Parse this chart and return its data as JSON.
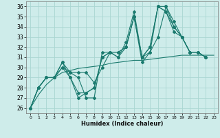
{
  "xlabel": "Humidex (Indice chaleur)",
  "xlim": [
    -0.5,
    23.5
  ],
  "ylim": [
    25.5,
    36.5
  ],
  "yticks": [
    26,
    27,
    28,
    29,
    30,
    31,
    32,
    33,
    34,
    35,
    36
  ],
  "xticks": [
    0,
    1,
    2,
    3,
    4,
    5,
    6,
    7,
    8,
    9,
    10,
    11,
    12,
    13,
    14,
    15,
    16,
    17,
    18,
    19,
    20,
    21,
    22,
    23
  ],
  "bg_color": "#ceecea",
  "grid_color": "#aad6d2",
  "line_color": "#1a7a6e",
  "lines": [
    [
      26,
      28,
      29,
      29,
      30.5,
      29,
      27,
      27.5,
      28,
      31,
      31.5,
      31,
      32,
      35,
      30.5,
      31.5,
      36,
      36,
      34,
      33,
      31.5,
      31.5,
      31
    ],
    [
      26,
      28,
      29,
      29,
      30,
      29.5,
      29,
      27,
      27,
      31.5,
      31.5,
      31.5,
      32,
      35,
      31,
      32,
      36,
      35.5,
      33.5,
      33,
      31.5,
      31.5,
      31
    ],
    [
      26,
      28,
      29,
      29,
      30.5,
      29.5,
      29.5,
      29.5,
      28.5,
      30,
      31.5,
      31.5,
      32,
      35,
      31,
      32,
      36,
      35.5,
      34,
      33,
      31.5,
      31.5,
      31
    ],
    [
      26,
      28,
      29,
      29,
      30,
      29,
      27.5,
      27.5,
      28,
      31,
      31.5,
      31,
      32.5,
      35.5,
      31,
      31.5,
      33,
      36,
      34.5,
      33,
      31.5,
      31.5,
      31
    ]
  ],
  "smooth_line": [
    26,
    27.3,
    28.3,
    29.0,
    29.5,
    29.7,
    29.9,
    30.0,
    30.1,
    30.2,
    30.4,
    30.5,
    30.6,
    30.7,
    30.7,
    30.8,
    30.9,
    31.0,
    31.1,
    31.2,
    31.2,
    31.2,
    31.2,
    31.2
  ]
}
